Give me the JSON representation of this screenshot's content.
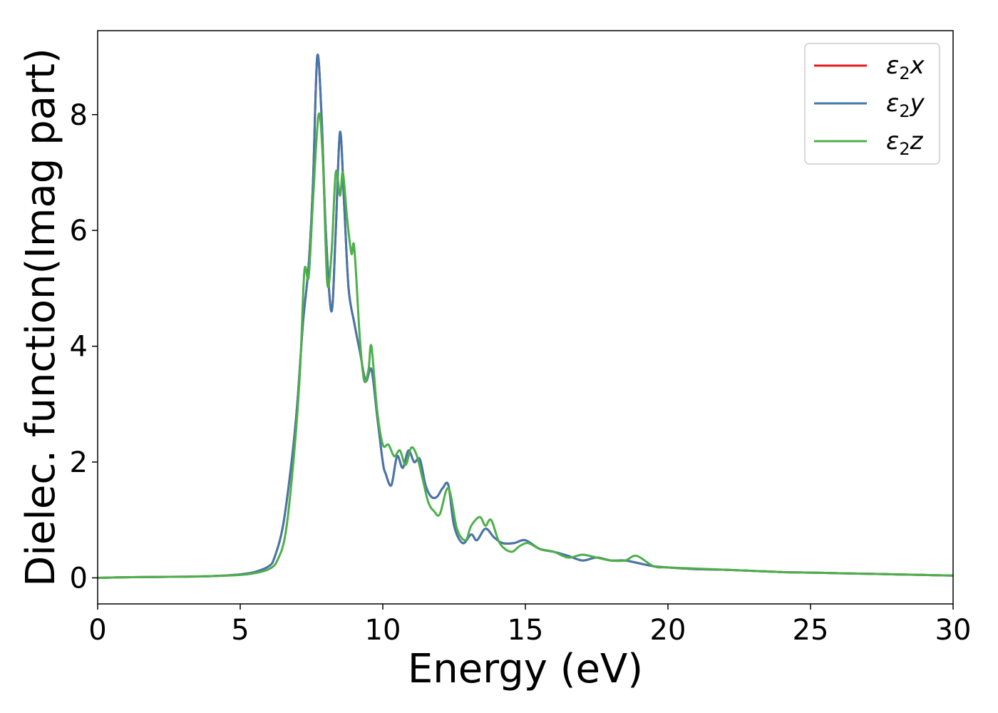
{
  "chart_data": {
    "type": "line",
    "title": "",
    "xlabel": "Energy (eV)",
    "ylabel": "Dielec. function(Imag part)",
    "xlim": [
      0,
      30
    ],
    "ylim": [
      -0.45,
      9.45
    ],
    "xticks": [
      0,
      5,
      10,
      15,
      20,
      25,
      30
    ],
    "yticks": [
      0,
      2,
      4,
      6,
      8
    ],
    "grid": false,
    "legend": {
      "placement": "top-right",
      "entries": [
        {
          "series": "e2x",
          "base": "ε",
          "sub": "2",
          "suffix": "x"
        },
        {
          "series": "e2y",
          "base": "ε",
          "sub": "2",
          "suffix": "y"
        },
        {
          "series": "e2z",
          "base": "ε",
          "sub": "2",
          "suffix": "z"
        }
      ]
    },
    "series": [
      {
        "id": "e2x",
        "name": "ε2x",
        "color": "#e41a1c",
        "x": [
          0,
          1,
          2,
          3,
          4,
          5,
          5.5,
          6,
          6.2,
          6.5,
          6.8,
          7,
          7.2,
          7.4,
          7.55,
          7.7,
          7.85,
          8,
          8.2,
          8.35,
          8.5,
          8.65,
          8.8,
          9,
          9.2,
          9.4,
          9.6,
          9.8,
          10,
          10.1,
          10.3,
          10.5,
          10.7,
          10.9,
          11.1,
          11.3,
          11.5,
          11.7,
          11.9,
          12.1,
          12.3,
          12.5,
          12.8,
          13.1,
          13.3,
          13.6,
          13.9,
          14.2,
          14.6,
          15,
          15.5,
          16,
          16.5,
          17,
          17.5,
          18,
          18.5,
          19,
          19.5,
          20,
          21,
          22,
          23,
          24,
          25,
          26,
          27,
          28,
          29,
          30
        ],
        "y": [
          0,
          0.01,
          0.015,
          0.02,
          0.03,
          0.06,
          0.1,
          0.2,
          0.35,
          0.9,
          2,
          3,
          4.4,
          5.4,
          6.8,
          9,
          8,
          6,
          4.6,
          6,
          7.7,
          6.4,
          5,
          4.4,
          3.9,
          3.4,
          3.6,
          2.8,
          2.0,
          1.8,
          1.6,
          2.1,
          1.9,
          2.2,
          2.0,
          2.05,
          1.6,
          1.4,
          1.4,
          1.55,
          1.6,
          0.9,
          0.6,
          0.75,
          0.65,
          0.85,
          0.7,
          0.6,
          0.6,
          0.65,
          0.5,
          0.45,
          0.38,
          0.3,
          0.35,
          0.3,
          0.3,
          0.25,
          0.2,
          0.18,
          0.15,
          0.14,
          0.12,
          0.1,
          0.09,
          0.08,
          0.07,
          0.06,
          0.05,
          0.04
        ]
      },
      {
        "id": "e2y",
        "name": "ε2y",
        "color": "#4477aa",
        "x": [
          0,
          1,
          2,
          3,
          4,
          5,
          5.5,
          6,
          6.2,
          6.5,
          6.8,
          7,
          7.2,
          7.4,
          7.55,
          7.7,
          7.85,
          8,
          8.2,
          8.35,
          8.5,
          8.65,
          8.8,
          9,
          9.2,
          9.4,
          9.6,
          9.8,
          10,
          10.1,
          10.3,
          10.5,
          10.7,
          10.9,
          11.1,
          11.3,
          11.5,
          11.7,
          11.9,
          12.1,
          12.3,
          12.5,
          12.8,
          13.1,
          13.3,
          13.6,
          13.9,
          14.2,
          14.6,
          15,
          15.5,
          16,
          16.5,
          17,
          17.5,
          18,
          18.5,
          19,
          19.5,
          20,
          21,
          22,
          23,
          24,
          25,
          26,
          27,
          28,
          29,
          30
        ],
        "y": [
          0,
          0.01,
          0.015,
          0.02,
          0.03,
          0.06,
          0.1,
          0.2,
          0.35,
          0.9,
          2,
          3,
          4.4,
          5.4,
          6.8,
          9,
          8,
          6,
          4.6,
          6,
          7.7,
          6.4,
          5,
          4.4,
          3.9,
          3.4,
          3.6,
          2.8,
          2.0,
          1.8,
          1.6,
          2.1,
          1.9,
          2.2,
          2.0,
          2.05,
          1.6,
          1.4,
          1.4,
          1.55,
          1.6,
          0.9,
          0.6,
          0.75,
          0.65,
          0.85,
          0.7,
          0.6,
          0.6,
          0.65,
          0.5,
          0.45,
          0.38,
          0.3,
          0.35,
          0.3,
          0.3,
          0.25,
          0.2,
          0.18,
          0.15,
          0.14,
          0.12,
          0.1,
          0.09,
          0.08,
          0.07,
          0.06,
          0.05,
          0.04
        ]
      },
      {
        "id": "e2z",
        "name": "ε2z",
        "color": "#4daf4a",
        "x": [
          0,
          1,
          2,
          3,
          4,
          5,
          5.5,
          6,
          6.3,
          6.6,
          6.9,
          7.1,
          7.25,
          7.4,
          7.55,
          7.75,
          7.9,
          8.05,
          8.2,
          8.35,
          8.5,
          8.6,
          8.75,
          8.9,
          9,
          9.2,
          9.35,
          9.5,
          9.6,
          9.8,
          10,
          10.2,
          10.4,
          10.6,
          10.8,
          11,
          11.2,
          11.4,
          11.6,
          11.8,
          12,
          12.3,
          12.6,
          12.9,
          13.1,
          13.4,
          13.6,
          13.8,
          14.1,
          14.5,
          14.8,
          15.1,
          15.5,
          16,
          16.5,
          17,
          17.5,
          18,
          18.5,
          18.9,
          19.5,
          20,
          21,
          22,
          23,
          24,
          25,
          26,
          27,
          28,
          29,
          30
        ],
        "y": [
          0,
          0.01,
          0.015,
          0.02,
          0.03,
          0.05,
          0.08,
          0.15,
          0.3,
          0.8,
          2.2,
          3.6,
          5.3,
          5.2,
          6.5,
          8,
          7.2,
          5.1,
          5.6,
          7,
          6.6,
          7,
          6.2,
          5.6,
          5.7,
          4.1,
          3.4,
          3.6,
          4,
          2.9,
          2.3,
          2.3,
          2.1,
          2.2,
          1.95,
          2.25,
          2.1,
          1.7,
          1.3,
          1.15,
          1.1,
          1.55,
          0.85,
          0.65,
          0.9,
          1.05,
          0.9,
          1.0,
          0.6,
          0.45,
          0.55,
          0.6,
          0.5,
          0.45,
          0.35,
          0.4,
          0.35,
          0.3,
          0.3,
          0.38,
          0.2,
          0.18,
          0.16,
          0.14,
          0.12,
          0.1,
          0.09,
          0.08,
          0.07,
          0.06,
          0.05,
          0.04
        ]
      }
    ]
  }
}
